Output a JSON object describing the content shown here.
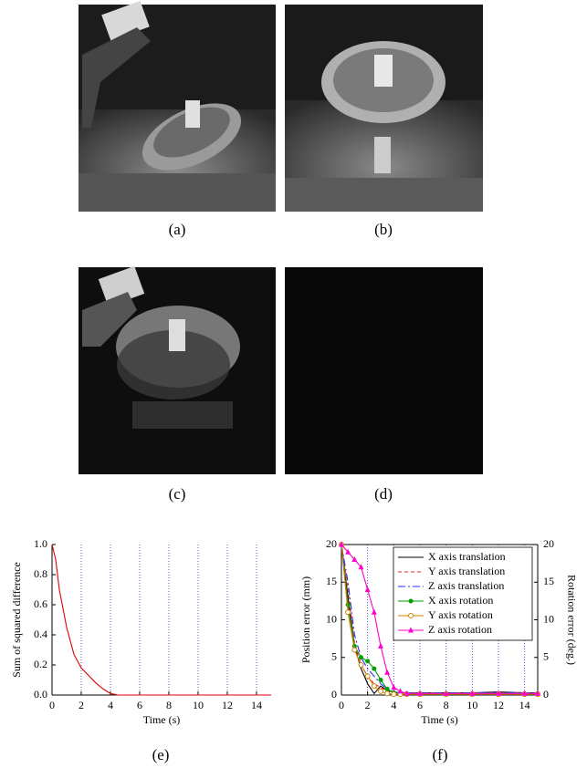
{
  "captions": [
    "(a)",
    "(b)",
    "(c)",
    "(d)",
    "(e)",
    "(f)"
  ],
  "chart_data": [
    {
      "type": "line",
      "xlabel": "Time (s)",
      "ylabel": "Sum of squared difference",
      "xlim": [
        0,
        15
      ],
      "xticks": [
        0,
        2,
        4,
        6,
        8,
        10,
        12,
        14
      ],
      "ylim": [
        0,
        1
      ],
      "yticks": [
        {
          "value": 0,
          "label": "0.0"
        },
        0.2,
        0.4,
        0.6,
        0.8,
        {
          "value": 1,
          "label": "1.0"
        }
      ],
      "grid": "x",
      "grid_color": "#3333cc",
      "x": [
        0,
        0.25,
        0.5,
        1,
        1.5,
        2,
        2.5,
        3,
        3.5,
        4,
        4.5,
        5,
        6,
        8,
        10,
        12,
        14,
        15
      ],
      "series": [
        {
          "color": "#e00000",
          "line_style": "solid",
          "marker": "none",
          "values": [
            1.0,
            0.9,
            0.7,
            0.45,
            0.27,
            0.18,
            0.13,
            0.08,
            0.04,
            0.01,
            0.0,
            0.0,
            0.0,
            0.0,
            0.0,
            0.0,
            0.0,
            0.0
          ]
        }
      ]
    },
    {
      "type": "line",
      "xlabel": "Time (s)",
      "ylabel": "Position error (mm)",
      "y2label": "Rotation error (deg.)",
      "xlim": [
        0,
        15
      ],
      "xticks": [
        0,
        2,
        4,
        6,
        8,
        10,
        12,
        14
      ],
      "ylim": [
        0,
        20
      ],
      "yticks": [
        0,
        5,
        10,
        15,
        20
      ],
      "y2lim": [
        0,
        20
      ],
      "y2ticks": [
        0,
        5,
        10,
        15,
        20
      ],
      "grid": "x",
      "grid_color": "#3333cc",
      "legend": "upper right",
      "x": [
        0,
        0.5,
        1,
        1.5,
        2,
        2.5,
        3,
        3.5,
        4,
        4.5,
        5,
        6,
        8,
        10,
        12,
        14,
        15
      ],
      "series": [
        {
          "name": "X axis translation",
          "color": "#000000",
          "line_style": "solid",
          "marker": "none",
          "values": [
            20,
            13,
            6.5,
            3.5,
            1.5,
            0.2,
            1.2,
            0.6,
            0.4,
            0.3,
            0.3,
            0.3,
            0.3,
            0.3,
            0.4,
            0.3,
            0.3
          ]
        },
        {
          "name": "Y axis translation",
          "color": "#ff2020",
          "line_style": "dashed",
          "marker": "none",
          "values": [
            20,
            14,
            7,
            4,
            2.5,
            1.5,
            1,
            0.5,
            0.3,
            0.3,
            0.3,
            0.3,
            0.3,
            0.3,
            0.3,
            0.3,
            0.3
          ]
        },
        {
          "name": "Z axis translation",
          "color": "#2030ff",
          "line_style": "dashdot",
          "marker": "none",
          "values": [
            20,
            15,
            8,
            5,
            3.5,
            2.5,
            1.5,
            0.8,
            0.4,
            0.3,
            0.3,
            0.3,
            0.3,
            0.3,
            0.3,
            0.3,
            0.3
          ]
        },
        {
          "name": "X axis rotation",
          "color": "#00a000",
          "line_style": "solid",
          "marker": "dot",
          "axis": "y2",
          "values": [
            20,
            12,
            6.5,
            5,
            4.5,
            3.5,
            2,
            0.8,
            0.3,
            0.2,
            0.2,
            0.2,
            0.2,
            0.2,
            0.2,
            0.2,
            0.2
          ]
        },
        {
          "name": "Y axis rotation",
          "color": "#d08000",
          "line_style": "solid",
          "marker": "circle",
          "axis": "y2",
          "values": [
            20,
            11,
            6,
            4,
            2.5,
            1.2,
            0.5,
            0.2,
            0.1,
            0.1,
            0.1,
            0.1,
            0.1,
            0.1,
            0.1,
            0.1,
            0.1
          ]
        },
        {
          "name": "Z axis rotation",
          "color": "#ff00cc",
          "line_style": "solid",
          "marker": "triangle",
          "axis": "y2",
          "values": [
            20,
            19,
            18,
            17,
            14,
            11,
            6.5,
            3,
            1,
            0.5,
            0.2,
            0.2,
            0.2,
            0.2,
            0.2,
            0.2,
            0.2
          ]
        }
      ]
    }
  ]
}
